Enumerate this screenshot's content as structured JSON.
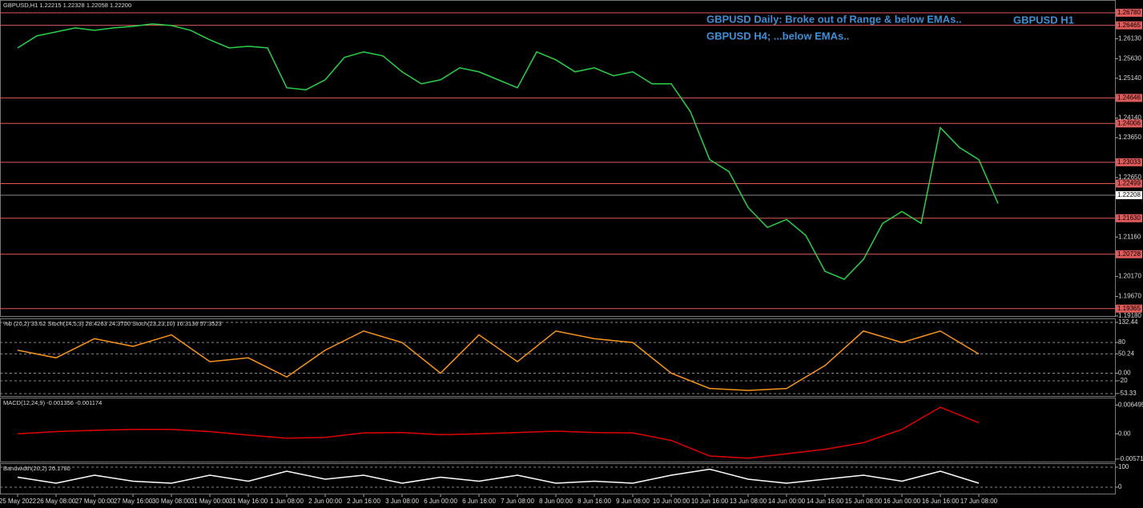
{
  "chart_data": [
    {
      "type": "line",
      "title": "GBPUSD,H1  1.22215 1.22328 1.22058 1.22200",
      "color": "#2bd14a",
      "annotations": [
        "GBPUSD Daily: Broke out of Range & below EMAs..",
        "GBPUSD H4; ...below EMAs..",
        "GBPUSD H1"
      ],
      "categories": [
        "25 May 2022",
        null,
        "26 May 08:00",
        null,
        "27 May 00:00",
        null,
        "27 May 16:00",
        null,
        "30 May 08:00",
        null,
        "31 May 00:00",
        null,
        "31 May 16:00",
        null,
        "1 Jun 08:00",
        null,
        "2 Jun 00:00",
        null,
        "2 Jun 16:00",
        null,
        "3 Jun 08:00",
        null,
        "6 Jun 00:00",
        null,
        "6 Jun 16:00",
        null,
        "7 Jun 08:00",
        null,
        "8 Jun 00:00",
        null,
        "8 Jun 16:00",
        null,
        "9 Jun 08:00",
        null,
        "10 Jun 00:00",
        null,
        "10 Jun 16:00",
        null,
        "13 Jun 08:00",
        null,
        "14 Jun 00:00",
        null,
        "14 Jun 16:00",
        null,
        "15 Jun 08:00",
        null,
        "16 Jun 00:00",
        null,
        "16 Jun 16:00",
        null,
        "17 Jun 08:00",
        null
      ],
      "values": [
        1.259,
        1.262,
        1.263,
        1.264,
        1.2634,
        1.264,
        1.2644,
        1.265,
        1.2646,
        1.2634,
        1.261,
        1.259,
        1.2594,
        1.259,
        1.249,
        1.2485,
        1.251,
        1.2566,
        1.258,
        1.257,
        1.253,
        1.25,
        1.251,
        1.254,
        1.253,
        1.251,
        1.249,
        1.258,
        1.256,
        1.253,
        1.254,
        1.252,
        1.253,
        1.25,
        1.25,
        1.243,
        1.231,
        1.228,
        1.219,
        1.214,
        1.216,
        1.212,
        1.203,
        1.201,
        1.206,
        1.215,
        1.218,
        1.215,
        1.239,
        1.234,
        1.231,
        1.22
      ],
      "ylim": [
        1.1918,
        1.271
      ],
      "yticks": [
        {
          "value": 1.2613,
          "label": "1.26130"
        },
        {
          "value": 1.2563,
          "label": "1.25630"
        },
        {
          "value": 1.2514,
          "label": "1.25140"
        },
        {
          "value": 1.2414,
          "label": "1.24140"
        },
        {
          "value": 1.2365,
          "label": "1.23650"
        },
        {
          "value": 1.2265,
          "label": "1.22650"
        },
        {
          "value": 1.2116,
          "label": "1.21160"
        },
        {
          "value": 1.2017,
          "label": "1.20170"
        },
        {
          "value": 1.1967,
          "label": "1.19670"
        },
        {
          "value": 1.1918,
          "label": "1.19180"
        }
      ],
      "level_ticks": [
        {
          "value": 1.2678,
          "label": "1.26780"
        },
        {
          "value": 1.26465,
          "label": "1.26465"
        },
        {
          "value": 1.24646,
          "label": "1.24646"
        },
        {
          "value": 1.24006,
          "label": "1.24006"
        },
        {
          "value": 1.23033,
          "label": "1.23033"
        },
        {
          "value": 1.22499,
          "label": "1.22499"
        },
        {
          "value": 1.2163,
          "label": "1.21630"
        },
        {
          "value": 1.20728,
          "label": "1.20728"
        },
        {
          "value": 1.19365,
          "label": "1.19365"
        }
      ],
      "level_color": "#e05a5a",
      "current_price": {
        "value": 1.22208,
        "label": "1.22208"
      }
    },
    {
      "type": "line",
      "title": "%b (20,2) 33.62  Stoch(14,5,3) 28.4263 24.3700  Stoch(23,23,10) 16.3136 57.3523",
      "color": "#f7941d",
      "values": [
        60,
        40,
        90,
        70,
        100,
        30,
        40,
        -10,
        60,
        110,
        80,
        0,
        100,
        30,
        110,
        90,
        80,
        0,
        -40,
        -45,
        -40,
        20,
        110,
        80,
        110,
        50
      ],
      "ylim": [
        -59.6,
        142.9
      ],
      "grid": true,
      "yticks": [
        132.44,
        80,
        50.24,
        {
          "value": 0,
          "label": "0.00"
        },
        -20,
        -53.33
      ]
    },
    {
      "type": "line",
      "title": "MACD(12,24,9) -0.001356 -0.001174",
      "color": "#e00000",
      "values": [
        0.0,
        0.0005,
        0.0008,
        0.001,
        0.001,
        0.0005,
        -0.0003,
        -0.001,
        -0.0008,
        0.0002,
        0.0003,
        -0.0002,
        0.0,
        0.0003,
        0.0006,
        0.0003,
        0.0002,
        -0.0015,
        -0.005,
        -0.0055,
        -0.0045,
        -0.0035,
        -0.002,
        0.001,
        0.006,
        0.0025
      ],
      "ylim": [
        -0.00627,
        0.00817
      ],
      "yticks": [
        0.006495,
        {
          "value": 0,
          "label": "0.00"
        },
        -0.005713
      ]
    },
    {
      "type": "line",
      "title": "Bandwidth(20,2) 26.1780",
      "color": "#ffffff",
      "values": [
        50,
        20,
        60,
        30,
        20,
        60,
        30,
        80,
        40,
        60,
        20,
        50,
        30,
        60,
        20,
        30,
        20,
        60,
        90,
        40,
        20,
        40,
        60,
        30,
        80,
        20
      ],
      "ylim": [
        -32,
        120
      ],
      "grid": true,
      "yticks": [
        100,
        0
      ]
    }
  ]
}
